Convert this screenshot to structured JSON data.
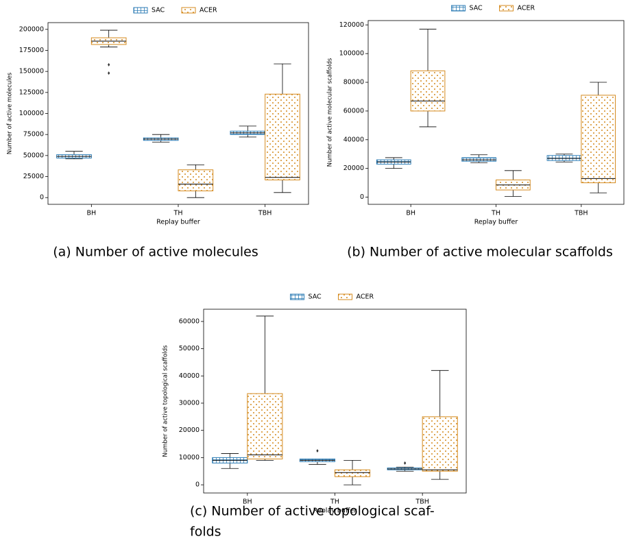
{
  "chart_data": [
    {
      "type": "box",
      "caption": [
        "(a) Number of active molecules"
      ],
      "xlabel": "Replay buffer",
      "ylabel": "Number of active molecules",
      "categories": [
        "BH",
        "TH",
        "TBH"
      ],
      "ylim": [
        -8000,
        208000
      ],
      "yticks": [
        0,
        25000,
        50000,
        75000,
        100000,
        125000,
        150000,
        175000,
        200000
      ],
      "series": [
        {
          "name": "SAC",
          "color": "#2b7bb4",
          "hatch": "grid",
          "boxes": [
            {
              "whislo": 46000,
              "q1": 47000,
              "med": 49000,
              "q3": 51000,
              "whishi": 55000
            },
            {
              "whislo": 66000,
              "q1": 68000,
              "med": 69500,
              "q3": 71000,
              "whishi": 75000
            },
            {
              "whislo": 72000,
              "q1": 75000,
              "med": 77000,
              "q3": 79000,
              "whishi": 85000
            }
          ]
        },
        {
          "name": "ACER",
          "color": "#d4891c",
          "hatch": "dots",
          "boxes": [
            {
              "whislo": 179000,
              "q1": 182000,
              "med": 186000,
              "q3": 190000,
              "whishi": 199000,
              "fliers": [
                158000,
                148000
              ]
            },
            {
              "whislo": 0,
              "q1": 8000,
              "med": 16000,
              "q3": 33000,
              "whishi": 39000
            },
            {
              "whislo": 6000,
              "q1": 21000,
              "med": 24000,
              "q3": 123000,
              "whishi": 159000
            }
          ]
        }
      ]
    },
    {
      "type": "box",
      "caption": [
        "(b) Number of active molecular scaffolds"
      ],
      "xlabel": "Replay buffer",
      "ylabel": "Number of active molecular scaffolds",
      "categories": [
        "BH",
        "TH",
        "TBH"
      ],
      "ylim": [
        -5000,
        123000
      ],
      "yticks": [
        0,
        20000,
        40000,
        60000,
        80000,
        100000,
        120000
      ],
      "series": [
        {
          "name": "SAC",
          "color": "#2b7bb4",
          "hatch": "grid",
          "boxes": [
            {
              "whislo": 20000,
              "q1": 23000,
              "med": 24500,
              "q3": 26000,
              "whishi": 27500
            },
            {
              "whislo": 24000,
              "q1": 25000,
              "med": 26000,
              "q3": 27500,
              "whishi": 29500
            },
            {
              "whislo": 24500,
              "q1": 25500,
              "med": 27000,
              "q3": 29000,
              "whishi": 30000
            }
          ]
        },
        {
          "name": "ACER",
          "color": "#d4891c",
          "hatch": "dots",
          "boxes": [
            {
              "whislo": 49000,
              "q1": 60000,
              "med": 67000,
              "q3": 88000,
              "whishi": 117000
            },
            {
              "whislo": 500,
              "q1": 5000,
              "med": 8500,
              "q3": 12000,
              "whishi": 18500
            },
            {
              "whislo": 3000,
              "q1": 10000,
              "med": 13000,
              "q3": 71000,
              "whishi": 80000
            }
          ]
        }
      ]
    },
    {
      "type": "box",
      "caption": [
        "(c) Number of active topological scaf-",
        "folds"
      ],
      "xlabel": "Replay buffer",
      "ylabel": "Number of active topological scaffolds",
      "categories": [
        "BH",
        "TH",
        "TBH"
      ],
      "ylim": [
        -3000,
        64500
      ],
      "yticks": [
        0,
        10000,
        20000,
        30000,
        40000,
        50000,
        60000
      ],
      "series": [
        {
          "name": "SAC",
          "color": "#2b7bb4",
          "hatch": "grid",
          "boxes": [
            {
              "whislo": 6000,
              "q1": 8000,
              "med": 9000,
              "q3": 10000,
              "whishi": 11500
            },
            {
              "whislo": 7500,
              "q1": 8500,
              "med": 9000,
              "q3": 9500,
              "whishi": 9500,
              "fliers": [
                12500
              ]
            },
            {
              "whislo": 5000,
              "q1": 5500,
              "med": 5800,
              "q3": 6200,
              "whishi": 6500,
              "fliers": [
                8000
              ]
            }
          ]
        },
        {
          "name": "ACER",
          "color": "#d4891c",
          "hatch": "dots",
          "boxes": [
            {
              "whislo": 9000,
              "q1": 9500,
              "med": 11000,
              "q3": 33500,
              "whishi": 62000
            },
            {
              "whislo": 0,
              "q1": 3000,
              "med": 4500,
              "q3": 5500,
              "whishi": 9000
            },
            {
              "whislo": 2000,
              "q1": 5000,
              "med": 5500,
              "q3": 25000,
              "whishi": 42000
            }
          ]
        }
      ]
    }
  ]
}
